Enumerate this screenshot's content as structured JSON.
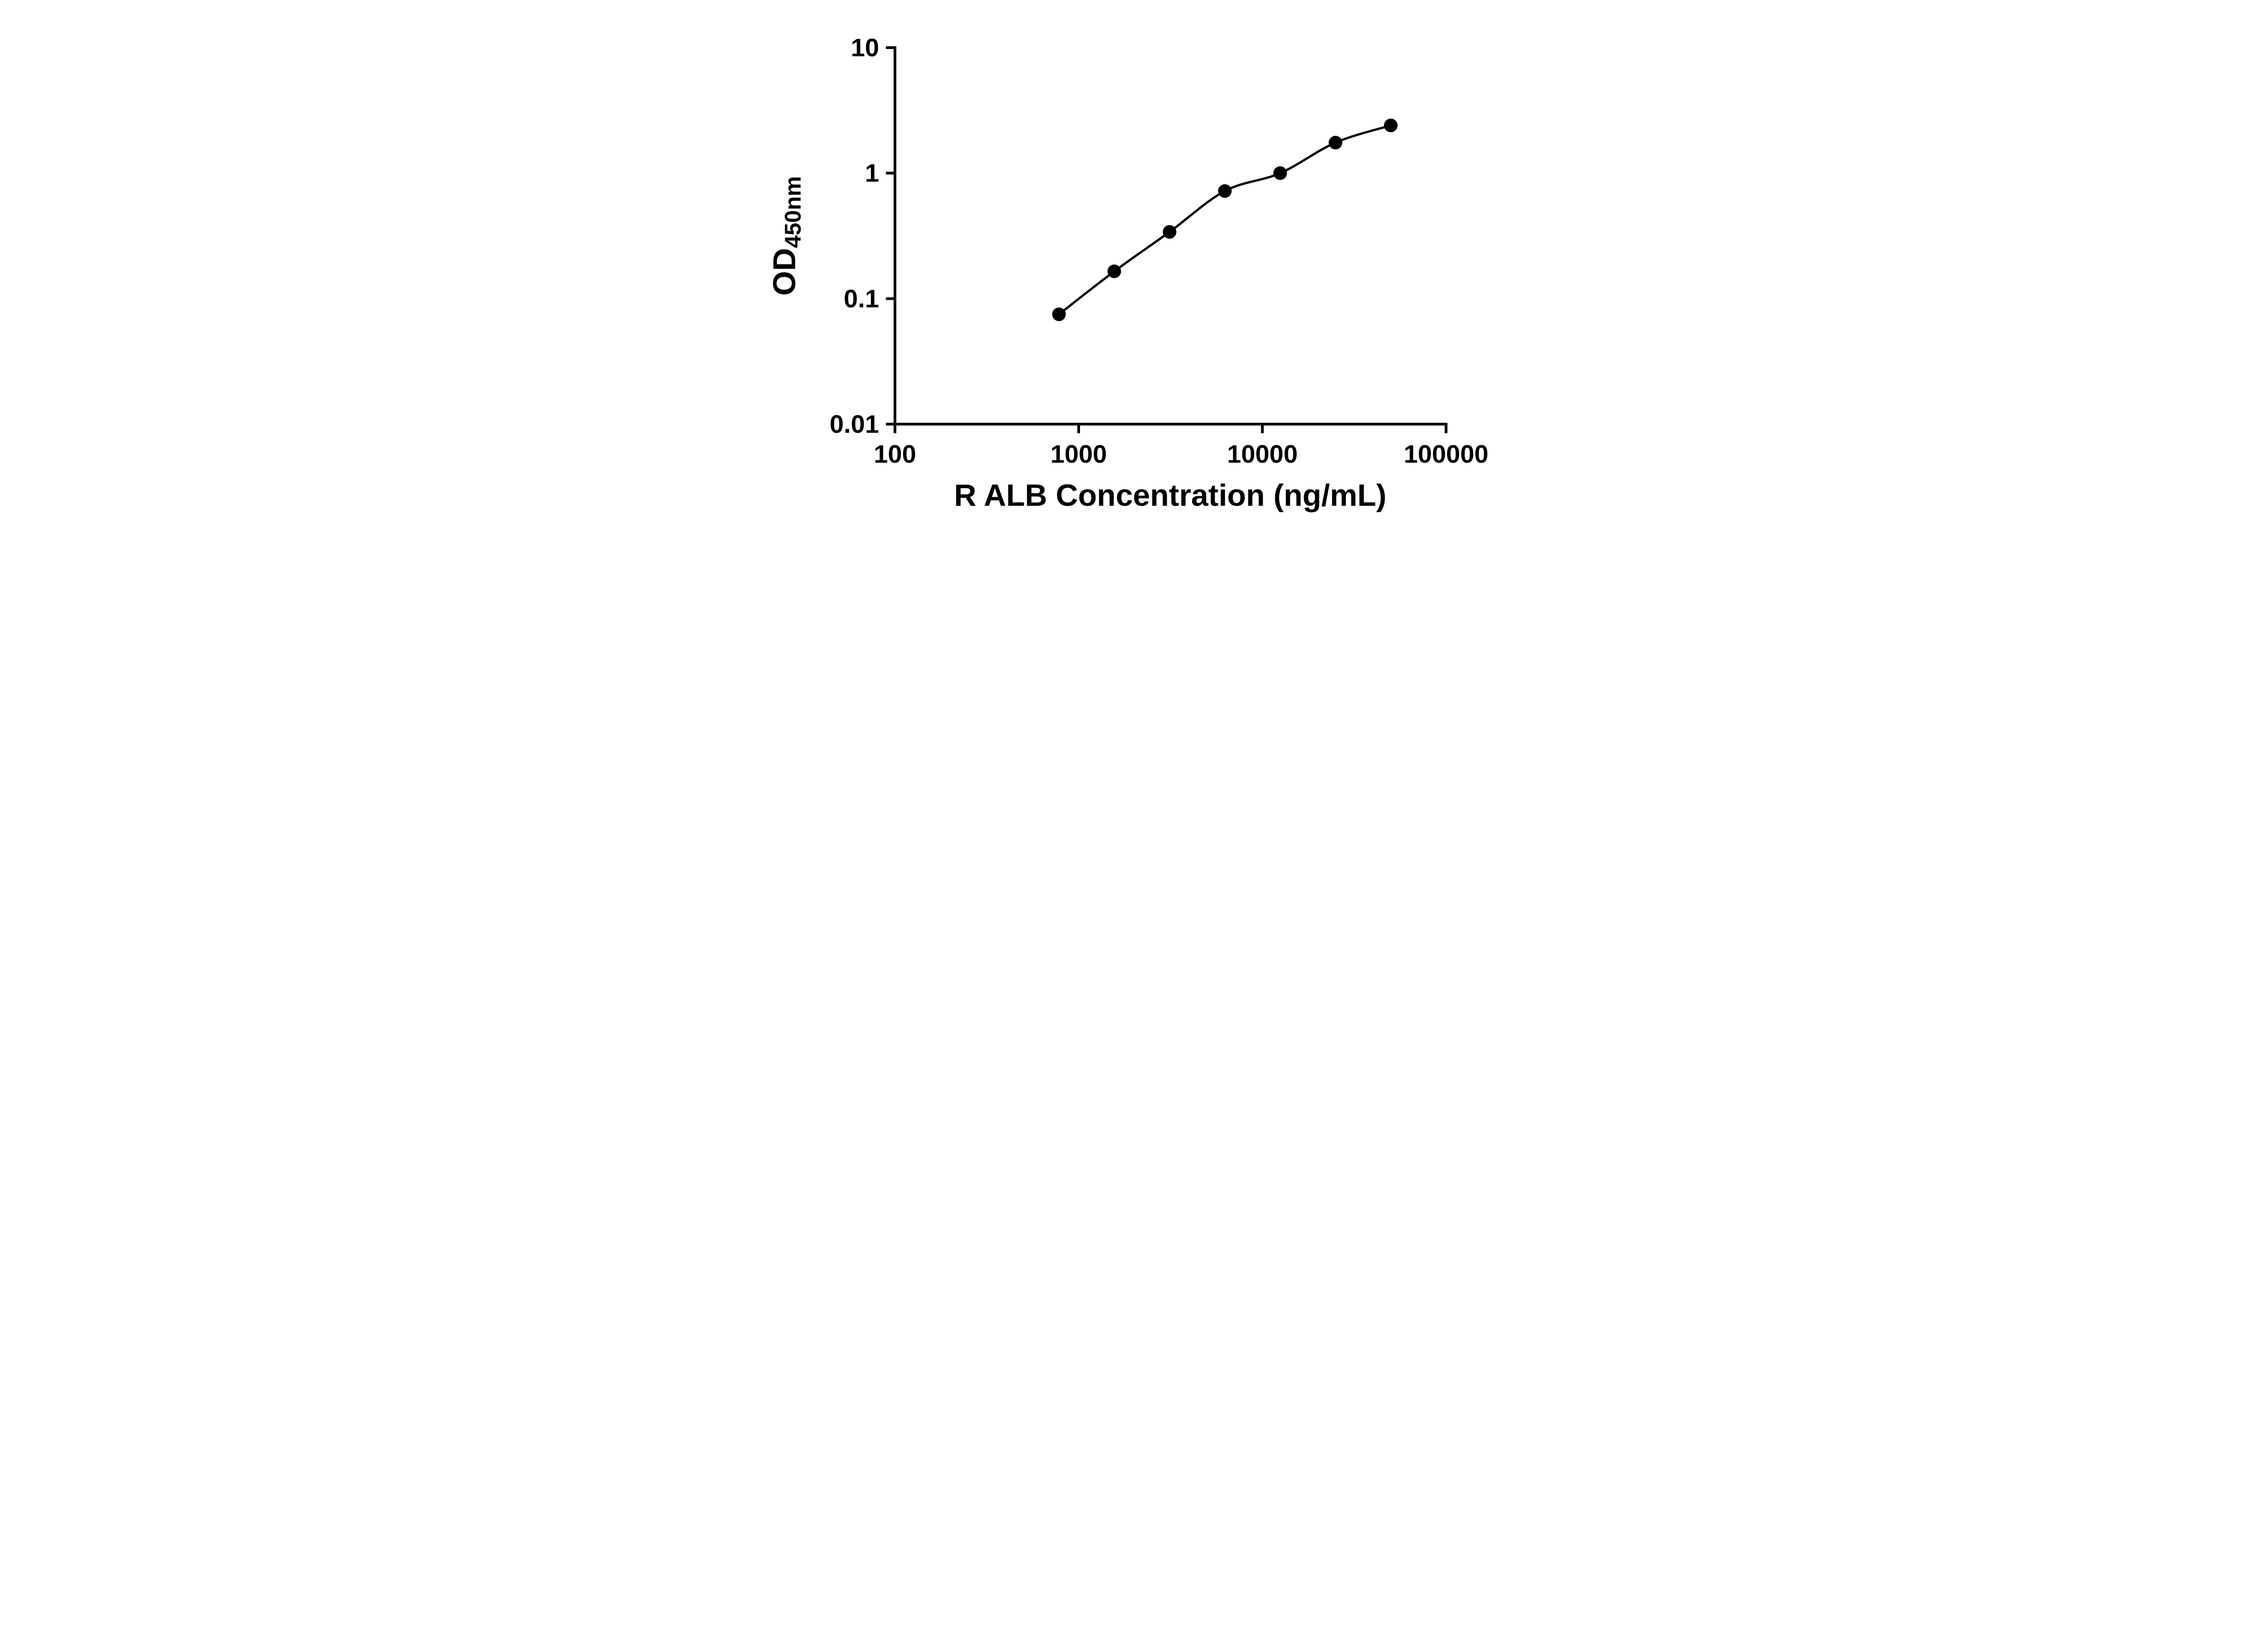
{
  "figure": {
    "background": "#ffffff",
    "foreground": "#000000"
  },
  "labels": {
    "xlabel": "R ALB Concentration (ng/mL)",
    "ylabel_main": "OD",
    "ylabel_sub": "450nm"
  },
  "chart_data": {
    "type": "scatter",
    "title": "",
    "xlabel": "R ALB Concentration (ng/mL)",
    "ylabel": "OD450nm",
    "xscale": "log",
    "yscale": "log",
    "xlim": [
      100,
      100000
    ],
    "ylim": [
      0.01,
      10
    ],
    "x": [
      781.3,
      1562.5,
      3125,
      6250,
      12500,
      25000,
      50000
    ],
    "y": [
      0.075,
      0.165,
      0.34,
      0.72,
      1.0,
      1.75,
      2.4
    ],
    "x_ticks": [
      100,
      1000,
      10000,
      100000
    ],
    "x_tick_labels": [
      "100",
      "1000",
      "10000",
      "100000"
    ],
    "y_ticks": [
      0.01,
      0.1,
      1,
      10
    ],
    "y_tick_labels": [
      "0.01",
      "0.1",
      "1",
      "10"
    ],
    "grid": false,
    "legend": "none",
    "fit_line": true,
    "marker_color": "#000000",
    "marker_radius": 15,
    "line_color": "#000000",
    "line_width": 5,
    "axis_color": "#000000",
    "axis_width": 6,
    "tick_length": 20
  }
}
